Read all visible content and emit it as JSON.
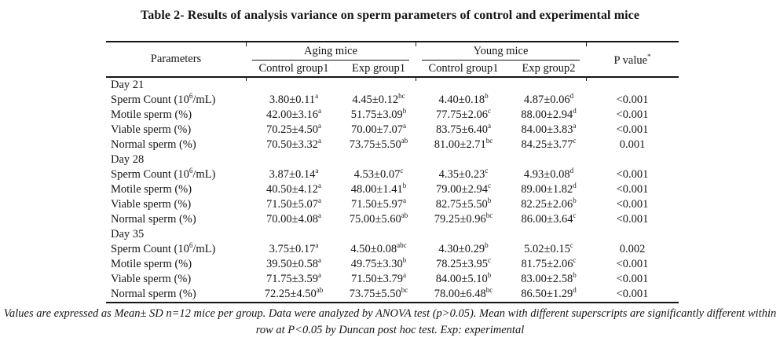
{
  "title": "Table 2- Results of analysis variance on sperm parameters of control and experimental mice",
  "table": {
    "header": {
      "parameters": "Parameters",
      "groups": [
        {
          "label": "Aging mice",
          "cols": [
            "Control group1",
            "Exp group1"
          ]
        },
        {
          "label": "Young mice",
          "cols": [
            "Control group1",
            "Exp group2"
          ]
        }
      ],
      "pvalue": {
        "text": "P value",
        "sup": "*"
      }
    },
    "sections": [
      {
        "day": "Day 21",
        "rows": [
          {
            "param": {
              "text": "Sperm Count (10",
              "sup": "6",
              "tail": "/mL)"
            },
            "cells": [
              {
                "v": "3.80±0.11",
                "s": "a"
              },
              {
                "v": "4.45±0.12",
                "s": "bc"
              },
              {
                "v": "4.40±0.18",
                "s": "b"
              },
              {
                "v": "4.87±0.06",
                "s": "d"
              }
            ],
            "p": "<0.001"
          },
          {
            "param": {
              "text": "Motile sperm (%)"
            },
            "cells": [
              {
                "v": "42.00±3.16",
                "s": "a"
              },
              {
                "v": "51.75±3.09",
                "s": "b"
              },
              {
                "v": "77.75±2.06",
                "s": "c"
              },
              {
                "v": "88.00±2.94",
                "s": "d"
              }
            ],
            "p": "<0.001"
          },
          {
            "param": {
              "text": "Viable sperm (%)"
            },
            "cells": [
              {
                "v": "70.25±4.50",
                "s": "a"
              },
              {
                "v": "70.00±7.07",
                "s": "a"
              },
              {
                "v": "83.75±6.40",
                "s": "a"
              },
              {
                "v": "84.00±3.83",
                "s": "a"
              }
            ],
            "p": "<0.001"
          },
          {
            "param": {
              "text": "Normal sperm (%)"
            },
            "cells": [
              {
                "v": "70.50±3.32",
                "s": "a"
              },
              {
                "v": "73.75±5.50",
                "s": "ab"
              },
              {
                "v": "81.00±2.71",
                "s": "bc"
              },
              {
                "v": "84.25±3.77",
                "s": "c"
              }
            ],
            "p": "0.001"
          }
        ]
      },
      {
        "day": "Day 28",
        "rows": [
          {
            "param": {
              "text": "Sperm Count (10",
              "sup": "6",
              "tail": "/mL)"
            },
            "cells": [
              {
                "v": "3.87±0.14",
                "s": "a"
              },
              {
                "v": "4.53±0.07",
                "s": "c"
              },
              {
                "v": "4.35±0.23",
                "s": "c"
              },
              {
                "v": "4.93±0.08",
                "s": "d"
              }
            ],
            "p": "<0.001"
          },
          {
            "param": {
              "text": "Motile sperm (%)"
            },
            "cells": [
              {
                "v": "40.50±4.12",
                "s": "a"
              },
              {
                "v": "48.00±1.41",
                "s": "b"
              },
              {
                "v": "79.00±2.94",
                "s": "c"
              },
              {
                "v": "89.00±1.82",
                "s": "d"
              }
            ],
            "p": "<0.001"
          },
          {
            "param": {
              "text": "Viable sperm (%)"
            },
            "cells": [
              {
                "v": "71.50±5.07",
                "s": "a"
              },
              {
                "v": "71.50±5.97",
                "s": "a"
              },
              {
                "v": "82.75±5.50",
                "s": "b"
              },
              {
                "v": "82.25±2.06",
                "s": "b"
              }
            ],
            "p": "<0.001"
          },
          {
            "param": {
              "text": "Normal sperm (%)"
            },
            "cells": [
              {
                "v": "70.00±4.08",
                "s": "a"
              },
              {
                "v": "75.00±5.60",
                "s": "ab"
              },
              {
                "v": "79.25±0.96",
                "s": "bc"
              },
              {
                "v": "86.00±3.64",
                "s": "c"
              }
            ],
            "p": "<0.001"
          }
        ]
      },
      {
        "day": "Day 35",
        "rows": [
          {
            "param": {
              "text": "Sperm Count (10",
              "sup": "6",
              "tail": "/mL)"
            },
            "cells": [
              {
                "v": "3.75±0.17",
                "s": "a"
              },
              {
                "v": "4.50±0.08",
                "s": "abc"
              },
              {
                "v": "4.30±0.29",
                "s": "b"
              },
              {
                "v": "5.02±0.15",
                "s": "c"
              }
            ],
            "p": "0.002"
          },
          {
            "param": {
              "text": "Motile sperm (%)"
            },
            "cells": [
              {
                "v": "39.50±0.58",
                "s": "a"
              },
              {
                "v": "49.75±3.30",
                "s": "b"
              },
              {
                "v": "78.25±3.95",
                "s": "c"
              },
              {
                "v": "81.75±2.06",
                "s": "c"
              }
            ],
            "p": "<0.001"
          },
          {
            "param": {
              "text": "Viable sperm (%)"
            },
            "cells": [
              {
                "v": "71.75±3.59",
                "s": "a"
              },
              {
                "v": "71.50±3.79",
                "s": "a"
              },
              {
                "v": "84.00±5.10",
                "s": "b"
              },
              {
                "v": "83.00±2.58",
                "s": "b"
              }
            ],
            "p": "<0.001"
          },
          {
            "param": {
              "text": "Normal sperm (%)"
            },
            "cells": [
              {
                "v": "72.25±4.50",
                "s": "ab"
              },
              {
                "v": "73.75±5.50",
                "s": "bc"
              },
              {
                "v": "78.00±6.48",
                "s": "bc"
              },
              {
                "v": "86.50±1.29",
                "s": "d"
              }
            ],
            "p": "<0.001"
          }
        ]
      }
    ]
  },
  "footnote": "Values are expressed as Mean± SD n=12 mice per group.  Data were analyzed by ANOVA test (p>0.05). Mean with different superscripts are significantly different within row at P<0.05 by Duncan post hoc test. Exp: experimental"
}
